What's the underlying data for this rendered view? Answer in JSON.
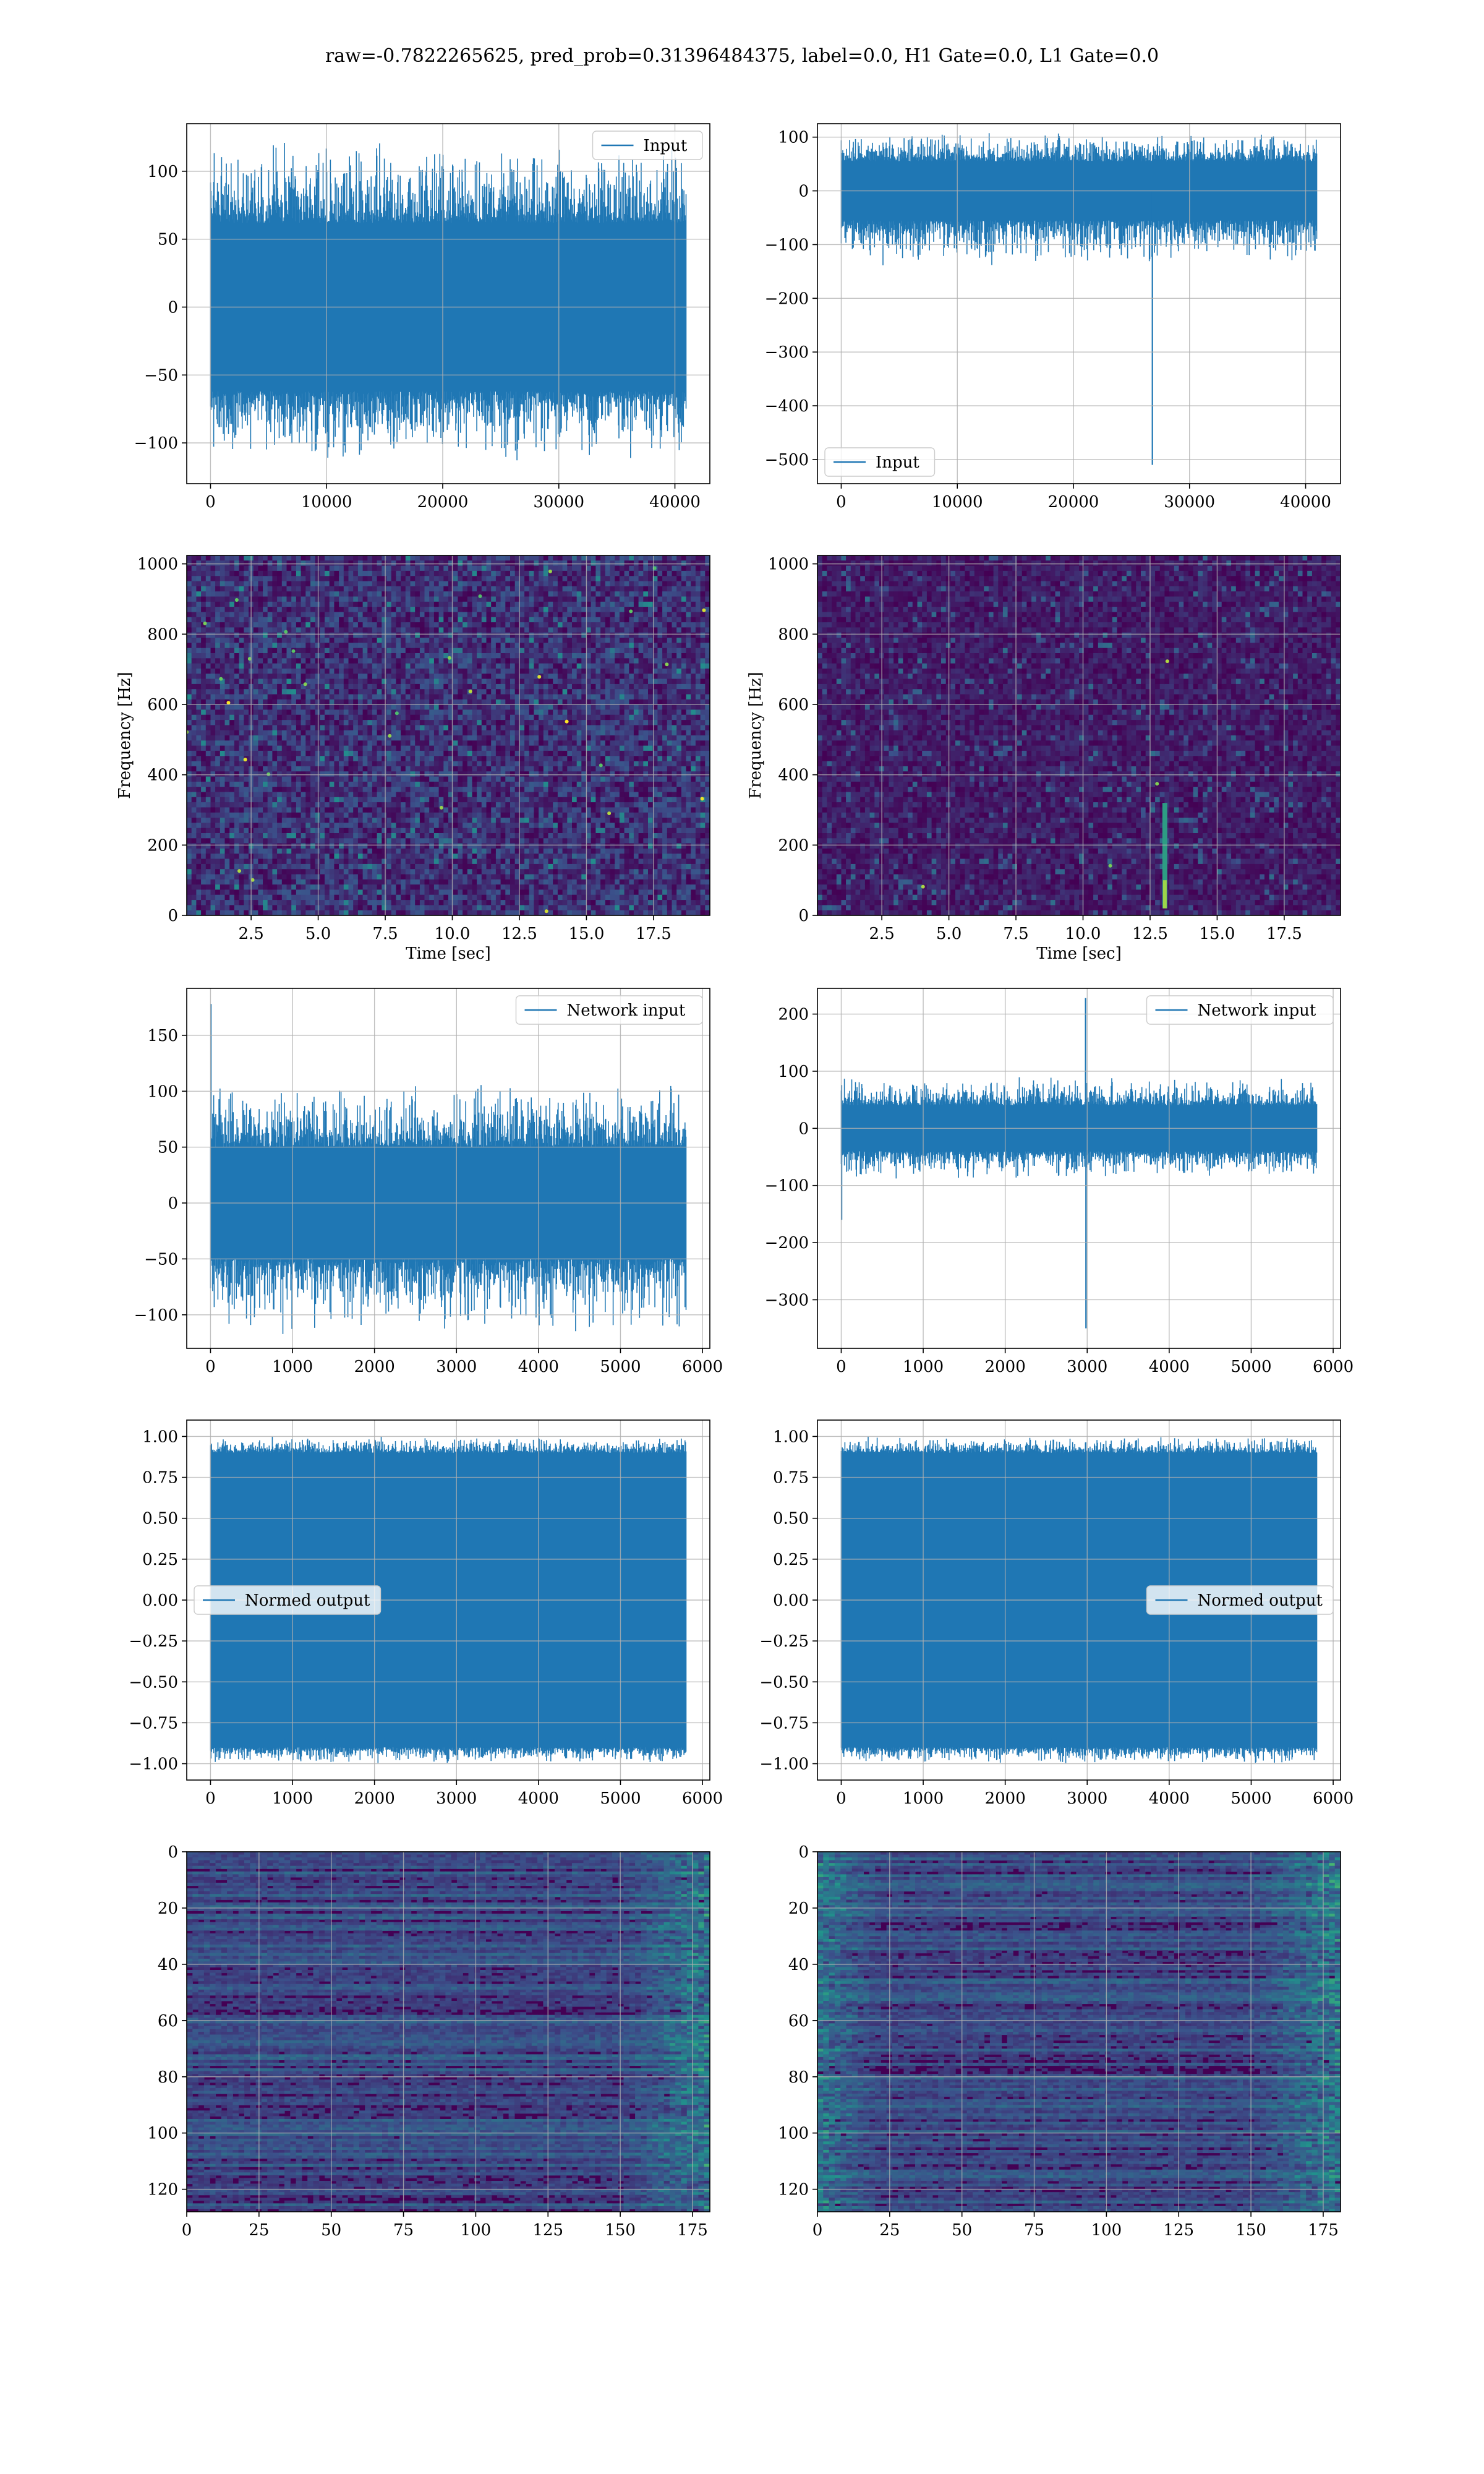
{
  "figure": {
    "suptitle": "raw=-0.7822265625, pred_prob=0.31396484375, label=0.0, H1 Gate=0.0, L1 Gate=0.0"
  },
  "colors": {
    "line": "#1f77b4",
    "grid": "#b0b0b0",
    "axes": "#000000",
    "viridis_dark": "#440154",
    "viridis_mid": "#21918c",
    "viridis_bright": "#fde725"
  },
  "chart_data": [
    {
      "id": "r1c1",
      "type": "line",
      "kind": "signal",
      "legend": "Input",
      "legend_loc": "upper right",
      "xlim": [
        -2048,
        43008
      ],
      "ylim": [
        -130,
        135
      ],
      "xticks": [
        0,
        10000,
        20000,
        30000,
        40000
      ],
      "xtick_labels": [
        "0",
        "10000",
        "20000",
        "30000",
        "40000"
      ],
      "yticks": [
        -100,
        -50,
        0,
        50,
        100
      ],
      "ytick_labels": [
        "−100",
        "−50",
        "0",
        "50",
        "100"
      ],
      "series": [
        {
          "x_range": [
            0,
            40960
          ],
          "band": [
            -62,
            62
          ],
          "peak_range": [
            -115,
            125
          ],
          "spikes": []
        }
      ]
    },
    {
      "id": "r1c2",
      "type": "line",
      "kind": "signal",
      "legend": "Input",
      "legend_loc": "lower left",
      "xlim": [
        -2048,
        43008
      ],
      "ylim": [
        -545,
        125
      ],
      "xticks": [
        0,
        10000,
        20000,
        30000,
        40000
      ],
      "xtick_labels": [
        "0",
        "10000",
        "20000",
        "30000",
        "40000"
      ],
      "yticks": [
        -500,
        -400,
        -300,
        -200,
        -100,
        0,
        100
      ],
      "ytick_labels": [
        "−500",
        "−400",
        "−300",
        "−200",
        "−100",
        "0",
        "100"
      ],
      "series": [
        {
          "x_range": [
            0,
            40960
          ],
          "band": [
            -55,
            55
          ],
          "peak_range": [
            -140,
            110
          ],
          "spikes": [
            {
              "x": 26800,
              "y": -510
            }
          ]
        }
      ]
    },
    {
      "id": "r2c1",
      "type": "heatmap",
      "kind": "spectrogram",
      "xlabel": "Time [sec]",
      "ylabel": "Frequency [Hz]",
      "xlim": [
        0.1,
        19.6
      ],
      "ylim": [
        0,
        1024
      ],
      "xticks": [
        2.5,
        5.0,
        7.5,
        10.0,
        12.5,
        15.0,
        17.5
      ],
      "xtick_labels": [
        "2.5",
        "5.0",
        "7.5",
        "10.0",
        "12.5",
        "15.0",
        "17.5"
      ],
      "yticks": [
        0,
        200,
        400,
        600,
        800,
        1000
      ],
      "ytick_labels": [
        "0",
        "200",
        "400",
        "600",
        "800",
        "1000"
      ],
      "noise_level": 0.28,
      "hot_spots": 30,
      "events": []
    },
    {
      "id": "r2c2",
      "type": "heatmap",
      "kind": "spectrogram",
      "xlabel": "Time [sec]",
      "ylabel": "Frequency [Hz]",
      "xlim": [
        0.1,
        19.6
      ],
      "ylim": [
        0,
        1024
      ],
      "xticks": [
        2.5,
        5.0,
        7.5,
        10.0,
        12.5,
        15.0,
        17.5
      ],
      "xtick_labels": [
        "2.5",
        "5.0",
        "7.5",
        "10.0",
        "12.5",
        "15.0",
        "17.5"
      ],
      "yticks": [
        0,
        200,
        400,
        600,
        800,
        1000
      ],
      "ytick_labels": [
        "0",
        "200",
        "400",
        "600",
        "800",
        "1000"
      ],
      "noise_level": 0.16,
      "hot_spots": 4,
      "events": [
        {
          "x": 13.05,
          "f_min": 20,
          "f_max": 320
        }
      ]
    },
    {
      "id": "r3c1",
      "type": "line",
      "kind": "signal",
      "legend": "Network input",
      "legend_loc": "upper right",
      "xlim": [
        -290,
        6090
      ],
      "ylim": [
        -130,
        192
      ],
      "xticks": [
        0,
        1000,
        2000,
        3000,
        4000,
        5000,
        6000
      ],
      "xtick_labels": [
        "0",
        "1000",
        "2000",
        "3000",
        "4000",
        "5000",
        "6000"
      ],
      "yticks": [
        -100,
        -50,
        0,
        50,
        100,
        150
      ],
      "ytick_labels": [
        "−100",
        "−50",
        "0",
        "50",
        "100",
        "150"
      ],
      "series": [
        {
          "x_range": [
            0,
            5800
          ],
          "band": [
            -50,
            50
          ],
          "peak_range": [
            -118,
            108
          ],
          "spikes": [
            {
              "x": 5,
              "y": 178
            }
          ]
        }
      ]
    },
    {
      "id": "r3c2",
      "type": "line",
      "kind": "signal",
      "legend": "Network input",
      "legend_loc": "upper right",
      "xlim": [
        -290,
        6090
      ],
      "ylim": [
        -385,
        245
      ],
      "xticks": [
        0,
        1000,
        2000,
        3000,
        4000,
        5000,
        6000
      ],
      "xtick_labels": [
        "0",
        "1000",
        "2000",
        "3000",
        "4000",
        "5000",
        "6000"
      ],
      "yticks": [
        -300,
        -200,
        -100,
        0,
        100,
        200
      ],
      "ytick_labels": [
        "−300",
        "−200",
        "−100",
        "0",
        "100",
        "200"
      ],
      "series": [
        {
          "x_range": [
            0,
            5800
          ],
          "band": [
            -40,
            40
          ],
          "peak_range": [
            -90,
            90
          ],
          "spikes": [
            {
              "x": 2980,
              "y": 228
            },
            {
              "x": 2985,
              "y": -350
            },
            {
              "x": 5,
              "y": -160
            }
          ]
        }
      ]
    },
    {
      "id": "r4c1",
      "type": "line",
      "kind": "normed",
      "legend": "Normed output",
      "legend_loc": "center left",
      "xlim": [
        -290,
        6090
      ],
      "ylim": [
        -1.1,
        1.1
      ],
      "xticks": [
        0,
        1000,
        2000,
        3000,
        4000,
        5000,
        6000
      ],
      "xtick_labels": [
        "0",
        "1000",
        "2000",
        "3000",
        "4000",
        "5000",
        "6000"
      ],
      "yticks": [
        -1.0,
        -0.75,
        -0.5,
        -0.25,
        0.0,
        0.25,
        0.5,
        0.75,
        1.0
      ],
      "ytick_labels": [
        "−1.00",
        "−0.75",
        "−0.50",
        "−0.25",
        "0.00",
        "0.25",
        "0.50",
        "0.75",
        "1.00"
      ],
      "series": [
        {
          "x_range": [
            0,
            5800
          ],
          "band": [
            -0.9,
            0.9
          ],
          "peak_range": [
            -1.0,
            1.0
          ],
          "spikes": []
        }
      ]
    },
    {
      "id": "r4c2",
      "type": "line",
      "kind": "normed",
      "legend": "Normed output",
      "legend_loc": "center right",
      "xlim": [
        -290,
        6090
      ],
      "ylim": [
        -1.1,
        1.1
      ],
      "xticks": [
        0,
        1000,
        2000,
        3000,
        4000,
        5000,
        6000
      ],
      "xtick_labels": [
        "0",
        "1000",
        "2000",
        "3000",
        "4000",
        "5000",
        "6000"
      ],
      "yticks": [
        -1.0,
        -0.75,
        -0.5,
        -0.25,
        0.0,
        0.25,
        0.5,
        0.75,
        1.0
      ],
      "ytick_labels": [
        "−1.00",
        "−0.75",
        "−0.50",
        "−0.25",
        "0.00",
        "0.25",
        "0.50",
        "0.75",
        "1.00"
      ],
      "series": [
        {
          "x_range": [
            0,
            5800
          ],
          "band": [
            -0.9,
            0.9
          ],
          "peak_range": [
            -1.0,
            1.0
          ],
          "spikes": []
        }
      ]
    },
    {
      "id": "r5c1",
      "type": "heatmap",
      "kind": "features",
      "xlim": [
        0,
        181
      ],
      "ylim": [
        128,
        0
      ],
      "xticks": [
        0,
        25,
        50,
        75,
        100,
        125,
        150,
        175
      ],
      "xtick_labels": [
        "0",
        "25",
        "50",
        "75",
        "100",
        "125",
        "150",
        "175"
      ],
      "yticks": [
        0,
        20,
        40,
        60,
        80,
        100,
        120
      ],
      "ytick_labels": [
        "0",
        "20",
        "40",
        "60",
        "80",
        "100",
        "120"
      ],
      "bright_edge": "right",
      "edge_start": 150
    },
    {
      "id": "r5c2",
      "type": "heatmap",
      "kind": "features",
      "xlim": [
        0,
        181
      ],
      "ylim": [
        128,
        0
      ],
      "xticks": [
        0,
        25,
        50,
        75,
        100,
        125,
        150,
        175
      ],
      "xtick_labels": [
        "0",
        "25",
        "50",
        "75",
        "100",
        "125",
        "150",
        "175"
      ],
      "yticks": [
        0,
        20,
        40,
        60,
        80,
        100,
        120
      ],
      "ytick_labels": [
        "0",
        "20",
        "40",
        "60",
        "80",
        "100",
        "120"
      ],
      "bright_edge": "both",
      "edge_start": 150
    }
  ]
}
